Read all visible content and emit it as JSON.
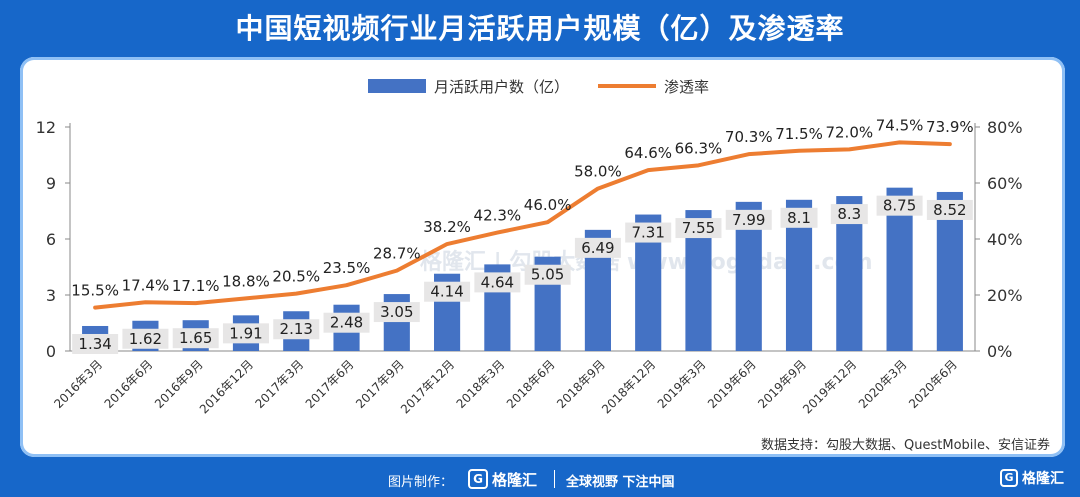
{
  "title": "中国短视频行业月活跃用户规模（亿）及渗透率",
  "colors": {
    "background": "#1767c9",
    "bar": "#4472c4",
    "line": "#ed7d31",
    "label_box": "#e7e6e6"
  },
  "chart_data": {
    "type": "bar+line",
    "categories": [
      "2016年3月",
      "2016年6月",
      "2016年9月",
      "2016年12月",
      "2017年3月",
      "2017年6月",
      "2017年9月",
      "2017年12月",
      "2018年3月",
      "2018年6月",
      "2018年9月",
      "2018年12月",
      "2019年3月",
      "2019年6月",
      "2019年9月",
      "2019年12月",
      "2020年3月",
      "2020年6月"
    ],
    "series": [
      {
        "name": "月活跃用户数（亿）",
        "type": "bar",
        "axis": "left",
        "values": [
          1.34,
          1.62,
          1.65,
          1.91,
          2.13,
          2.48,
          3.05,
          4.14,
          4.64,
          5.05,
          6.49,
          7.31,
          7.55,
          7.99,
          8.1,
          8.3,
          8.75,
          8.52
        ],
        "labels": [
          "1.34",
          "1.62",
          "1.65",
          "1.91",
          "2.13",
          "2.48",
          "3.05",
          "4.14",
          "4.64",
          "5.05",
          "6.49",
          "7.31",
          "7.55",
          "7.99",
          "8.1",
          "8.3",
          "8.75",
          "8.52"
        ]
      },
      {
        "name": "渗透率",
        "type": "line",
        "axis": "right",
        "values": [
          15.5,
          17.4,
          17.1,
          18.8,
          20.5,
          23.5,
          28.7,
          38.2,
          42.3,
          46.0,
          58.0,
          64.6,
          66.3,
          70.3,
          71.5,
          72.0,
          74.5,
          73.9
        ],
        "labels": [
          "15.5%",
          "17.4%",
          "17.1%",
          "18.8%",
          "20.5%",
          "23.5%",
          "28.7%",
          "38.2%",
          "42.3%",
          "46.0%",
          "58.0%",
          "64.6%",
          "66.3%",
          "70.3%",
          "71.5%",
          "72.0%",
          "74.5%",
          "73.9%"
        ]
      }
    ],
    "y_left": {
      "ylim": [
        0,
        12
      ],
      "ticks": [
        0,
        3,
        6,
        9,
        12
      ],
      "tick_labels": [
        "0",
        "3",
        "6",
        "9",
        "12"
      ]
    },
    "y_right": {
      "ylim": [
        0,
        80
      ],
      "ticks": [
        0,
        20,
        40,
        60,
        80
      ],
      "tick_labels": [
        "0%",
        "20%",
        "40%",
        "60%",
        "80%"
      ]
    },
    "legend": {
      "position": "top",
      "items": [
        "月活跃用户数（亿）",
        "渗透率"
      ]
    },
    "source": "数据支持：勾股大数据、QuestMobile、安信证券",
    "watermark": "格隆汇 | 勾股大数据 www.gogudata.com"
  },
  "footer": {
    "credit": "图片制作：",
    "logo": "格隆汇",
    "logo_mark": "G",
    "slogan": "全球视野 下注中国",
    "corner_logo": "格隆汇",
    "corner_mark": "G"
  }
}
